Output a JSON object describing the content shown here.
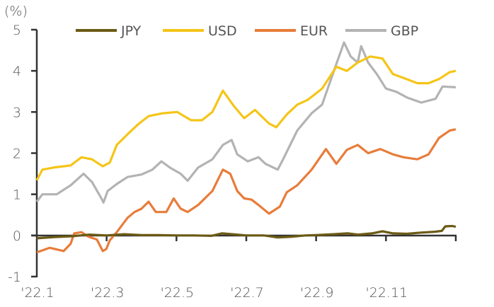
{
  "chart_data": {
    "type": "line",
    "title": "",
    "ylabel": "(%)",
    "xlabel": "",
    "ylim": [
      -1,
      5
    ],
    "xlim_months": [
      0,
      12
    ],
    "yticks": [
      5,
      4,
      3,
      2,
      1,
      0,
      -1
    ],
    "xticks": [
      {
        "month": 0,
        "label": "'22.1"
      },
      {
        "month": 2,
        "label": "'22.3"
      },
      {
        "month": 4,
        "label": "'22.5"
      },
      {
        "month": 6,
        "label": "'22.7"
      },
      {
        "month": 8,
        "label": "'22.9"
      },
      {
        "month": 10,
        "label": "'22.11"
      }
    ],
    "legend_position": "top",
    "series": [
      {
        "name": "JPY",
        "color": "#6b5a14",
        "points": [
          [
            0,
            -0.07
          ],
          [
            0.5,
            -0.04
          ],
          [
            1,
            -0.02
          ],
          [
            1.5,
            0.02
          ],
          [
            2,
            0.0
          ],
          [
            2.5,
            0.03
          ],
          [
            3,
            0.01
          ],
          [
            3.5,
            0.01
          ],
          [
            4,
            0.0
          ],
          [
            4.5,
            0.0
          ],
          [
            5,
            -0.01
          ],
          [
            5.3,
            0.05
          ],
          [
            5.6,
            0.03
          ],
          [
            6,
            0.0
          ],
          [
            6.5,
            0.0
          ],
          [
            6.9,
            -0.05
          ],
          [
            7.3,
            -0.03
          ],
          [
            7.7,
            0.0
          ],
          [
            8,
            0.01
          ],
          [
            8.5,
            0.03
          ],
          [
            8.9,
            0.05
          ],
          [
            9.2,
            0.02
          ],
          [
            9.6,
            0.05
          ],
          [
            9.9,
            0.1
          ],
          [
            10.2,
            0.05
          ],
          [
            10.6,
            0.04
          ],
          [
            11,
            0.07
          ],
          [
            11.4,
            0.09
          ],
          [
            11.6,
            0.11
          ],
          [
            11.7,
            0.22
          ],
          [
            11.9,
            0.23
          ],
          [
            12,
            0.21
          ]
        ]
      },
      {
        "name": "USD",
        "color": "#f5c518",
        "points": [
          [
            0,
            1.34
          ],
          [
            0.16,
            1.6
          ],
          [
            0.47,
            1.65
          ],
          [
            0.97,
            1.7
          ],
          [
            1.28,
            1.9
          ],
          [
            1.58,
            1.85
          ],
          [
            1.89,
            1.68
          ],
          [
            2.09,
            1.77
          ],
          [
            2.29,
            2.2
          ],
          [
            2.6,
            2.46
          ],
          [
            2.9,
            2.7
          ],
          [
            3.2,
            2.9
          ],
          [
            3.61,
            2.97
          ],
          [
            4.02,
            3.0
          ],
          [
            4.42,
            2.8
          ],
          [
            4.73,
            2.8
          ],
          [
            5.03,
            3.0
          ],
          [
            5.33,
            3.52
          ],
          [
            5.64,
            3.15
          ],
          [
            5.94,
            2.85
          ],
          [
            6.25,
            3.05
          ],
          [
            6.65,
            2.72
          ],
          [
            6.86,
            2.63
          ],
          [
            7.16,
            2.94
          ],
          [
            7.46,
            3.18
          ],
          [
            7.77,
            3.3
          ],
          [
            8.17,
            3.57
          ],
          [
            8.58,
            4.1
          ],
          [
            8.88,
            4.0
          ],
          [
            9.19,
            4.2
          ],
          [
            9.55,
            4.35
          ],
          [
            9.9,
            4.3
          ],
          [
            10.2,
            3.92
          ],
          [
            10.5,
            3.83
          ],
          [
            10.9,
            3.7
          ],
          [
            11.22,
            3.7
          ],
          [
            11.52,
            3.8
          ],
          [
            11.83,
            3.97
          ],
          [
            12,
            4.0
          ]
        ]
      },
      {
        "name": "EUR",
        "color": "#e87c3a",
        "points": [
          [
            0,
            -0.41
          ],
          [
            0.37,
            -0.3
          ],
          [
            0.77,
            -0.38
          ],
          [
            0.97,
            -0.2
          ],
          [
            1.07,
            0.05
          ],
          [
            1.28,
            0.08
          ],
          [
            1.48,
            -0.03
          ],
          [
            1.72,
            -0.1
          ],
          [
            1.89,
            -0.38
          ],
          [
            1.99,
            -0.33
          ],
          [
            2.09,
            -0.12
          ],
          [
            2.29,
            0.08
          ],
          [
            2.6,
            0.43
          ],
          [
            2.8,
            0.57
          ],
          [
            3.0,
            0.65
          ],
          [
            3.2,
            0.82
          ],
          [
            3.41,
            0.57
          ],
          [
            3.71,
            0.57
          ],
          [
            3.92,
            0.9
          ],
          [
            4.12,
            0.65
          ],
          [
            4.32,
            0.57
          ],
          [
            4.62,
            0.74
          ],
          [
            5.03,
            1.08
          ],
          [
            5.33,
            1.6
          ],
          [
            5.54,
            1.5
          ],
          [
            5.74,
            1.08
          ],
          [
            5.94,
            0.9
          ],
          [
            6.15,
            0.87
          ],
          [
            6.35,
            0.74
          ],
          [
            6.65,
            0.53
          ],
          [
            6.96,
            0.7
          ],
          [
            7.16,
            1.05
          ],
          [
            7.46,
            1.22
          ],
          [
            7.87,
            1.6
          ],
          [
            8.28,
            2.1
          ],
          [
            8.58,
            1.74
          ],
          [
            8.88,
            2.08
          ],
          [
            9.19,
            2.2
          ],
          [
            9.49,
            2.0
          ],
          [
            9.84,
            2.1
          ],
          [
            10.2,
            1.97
          ],
          [
            10.5,
            1.9
          ],
          [
            10.9,
            1.85
          ],
          [
            11.22,
            1.97
          ],
          [
            11.52,
            2.37
          ],
          [
            11.83,
            2.55
          ],
          [
            12,
            2.58
          ]
        ]
      },
      {
        "name": "GBP",
        "color": "#b3b3b3",
        "points": [
          [
            0,
            0.82
          ],
          [
            0.16,
            1.0
          ],
          [
            0.57,
            1.0
          ],
          [
            0.97,
            1.22
          ],
          [
            1.34,
            1.5
          ],
          [
            1.58,
            1.3
          ],
          [
            1.85,
            0.9
          ],
          [
            1.91,
            0.8
          ],
          [
            2.03,
            1.08
          ],
          [
            2.29,
            1.25
          ],
          [
            2.6,
            1.42
          ],
          [
            3.0,
            1.48
          ],
          [
            3.31,
            1.6
          ],
          [
            3.57,
            1.8
          ],
          [
            3.81,
            1.65
          ],
          [
            4.12,
            1.5
          ],
          [
            4.32,
            1.33
          ],
          [
            4.62,
            1.65
          ],
          [
            5.03,
            1.85
          ],
          [
            5.33,
            2.2
          ],
          [
            5.58,
            2.32
          ],
          [
            5.74,
            1.97
          ],
          [
            6.04,
            1.8
          ],
          [
            6.35,
            1.9
          ],
          [
            6.55,
            1.74
          ],
          [
            6.9,
            1.6
          ],
          [
            7.06,
            1.86
          ],
          [
            7.46,
            2.55
          ],
          [
            7.87,
            2.97
          ],
          [
            8.17,
            3.18
          ],
          [
            8.58,
            4.17
          ],
          [
            8.8,
            4.69
          ],
          [
            8.99,
            4.35
          ],
          [
            9.19,
            4.2
          ],
          [
            9.29,
            4.6
          ],
          [
            9.49,
            4.2
          ],
          [
            9.74,
            3.92
          ],
          [
            10.0,
            3.57
          ],
          [
            10.3,
            3.49
          ],
          [
            10.61,
            3.35
          ],
          [
            11.01,
            3.23
          ],
          [
            11.42,
            3.32
          ],
          [
            11.62,
            3.62
          ],
          [
            12,
            3.6
          ]
        ]
      }
    ]
  }
}
